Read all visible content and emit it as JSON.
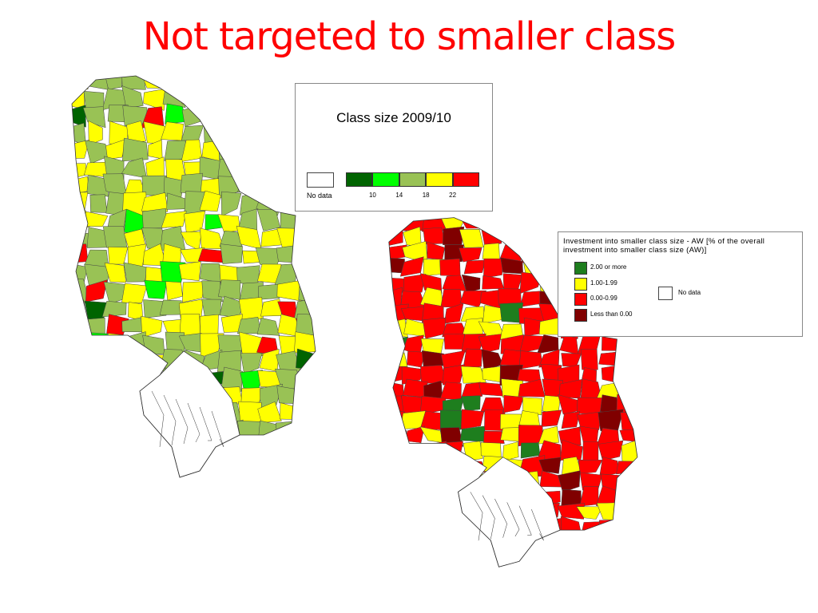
{
  "title": "Not targeted to smaller class",
  "legend_class_size": {
    "title": "Class size 2009/10",
    "no_data": "No data",
    "colors": [
      "#006400",
      "#00ff00",
      "#99c255",
      "#ffff00",
      "#ff0000"
    ],
    "ticks": [
      10,
      14,
      18,
      22
    ]
  },
  "legend_investment": {
    "title": "Investment into smaller class size - AW [% of the overall investment into smaller class size (AW)]",
    "items": [
      {
        "label": "2.00 or more",
        "color": "#1e7e1e"
      },
      {
        "label": "1.00-1.99",
        "color": "#ffff00"
      },
      {
        "label": "0.00-0.99",
        "color": "#ff0000"
      },
      {
        "label": "Less than 0.00",
        "color": "#800000"
      }
    ],
    "no_data": "No data"
  }
}
